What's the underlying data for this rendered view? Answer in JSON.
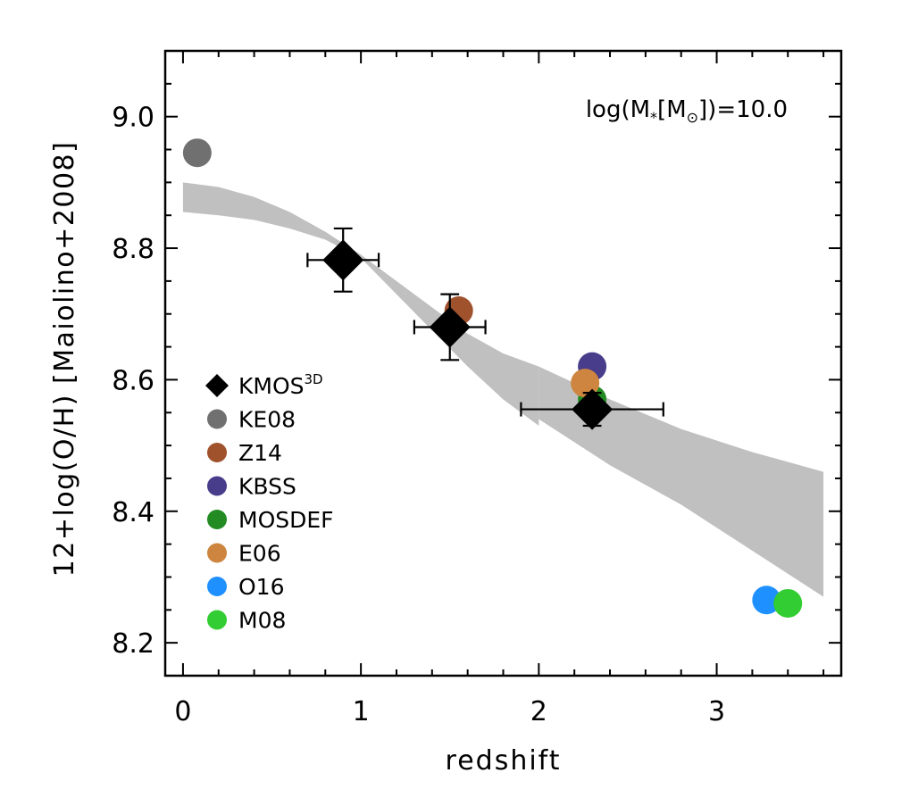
{
  "chart_data": {
    "type": "scatter",
    "xlabel": "redshift",
    "ylabel": "12+log(O/H)  [Maiolino+2008]",
    "annotation": {
      "prefix": "log(M",
      "sub": "*",
      "mid": "[M",
      "sun_sub": "⊙",
      "suffix": "])=10.0"
    },
    "xlim": [
      -0.1,
      3.7
    ],
    "ylim": [
      8.15,
      9.1
    ],
    "xticks": [
      0,
      1,
      2,
      3
    ],
    "xtick_labels": [
      "0",
      "1",
      "2",
      "3"
    ],
    "yticks": [
      8.2,
      8.4,
      8.6,
      8.8,
      9.0
    ],
    "ytick_labels": [
      "8.2",
      "8.4",
      "8.6",
      "8.8",
      "9.0"
    ],
    "grid": false,
    "legend_position": "lower-left",
    "band": {
      "color": "#c0c0c0",
      "segments": [
        {
          "x": [
            0.0,
            0.2,
            0.4,
            0.6,
            0.8,
            1.0,
            1.2,
            1.4,
            1.6,
            1.8,
            2.0
          ],
          "upper": [
            8.9,
            8.893,
            8.878,
            8.855,
            8.825,
            8.79,
            8.75,
            8.71,
            8.67,
            8.64,
            8.62
          ],
          "lower": [
            8.855,
            8.85,
            8.843,
            8.83,
            8.813,
            8.785,
            8.73,
            8.675,
            8.62,
            8.57,
            8.53
          ]
        },
        {
          "x": [
            2.0,
            2.4,
            2.8,
            3.2,
            3.6
          ],
          "upper": [
            8.62,
            8.57,
            8.525,
            8.49,
            8.46
          ],
          "lower": [
            8.54,
            8.47,
            8.41,
            8.34,
            8.27
          ]
        }
      ]
    },
    "series": [
      {
        "name": "KE08",
        "color": "#707070",
        "points": [
          {
            "x": 0.08,
            "y": 8.945
          }
        ]
      },
      {
        "name": "Z14",
        "color": "#a0522d",
        "points": [
          {
            "x": 1.55,
            "y": 8.705
          }
        ]
      },
      {
        "name": "KBSS",
        "color": "#483d8b",
        "points": [
          {
            "x": 2.3,
            "y": 8.62
          }
        ]
      },
      {
        "name": "MOSDEF",
        "color": "#228b22",
        "points": [
          {
            "x": 2.3,
            "y": 8.57
          }
        ]
      },
      {
        "name": "E06",
        "color": "#cd853f",
        "points": [
          {
            "x": 2.26,
            "y": 8.595
          }
        ]
      },
      {
        "name": "O16",
        "color": "#1e90ff",
        "points": [
          {
            "x": 3.28,
            "y": 8.265
          }
        ]
      },
      {
        "name": "M08",
        "color": "#32cd32",
        "points": [
          {
            "x": 3.4,
            "y": 8.26
          }
        ]
      }
    ],
    "kmos": {
      "name": "KMOS",
      "name_sup": "3D",
      "color": "#000000",
      "points": [
        {
          "x": 0.9,
          "y": 8.782,
          "xerr": 0.2,
          "yerr": 0.048
        },
        {
          "x": 1.5,
          "y": 8.68,
          "xerr": 0.2,
          "yerr": 0.05
        },
        {
          "x": 2.3,
          "y": 8.555,
          "xerr": 0.4,
          "yerr": 0.025
        }
      ]
    },
    "legend": [
      {
        "label": "KMOS",
        "sup": "3D",
        "marker": "diamond",
        "color": "#000000"
      },
      {
        "label": "KE08",
        "marker": "circle",
        "color": "#707070"
      },
      {
        "label": "Z14",
        "marker": "circle",
        "color": "#a0522d"
      },
      {
        "label": "KBSS",
        "marker": "circle",
        "color": "#483d8b"
      },
      {
        "label": "MOSDEF",
        "marker": "circle",
        "color": "#228b22"
      },
      {
        "label": "E06",
        "marker": "circle",
        "color": "#cd853f"
      },
      {
        "label": "O16",
        "marker": "circle",
        "color": "#1e90ff"
      },
      {
        "label": "M08",
        "marker": "circle",
        "color": "#32cd32"
      }
    ]
  }
}
